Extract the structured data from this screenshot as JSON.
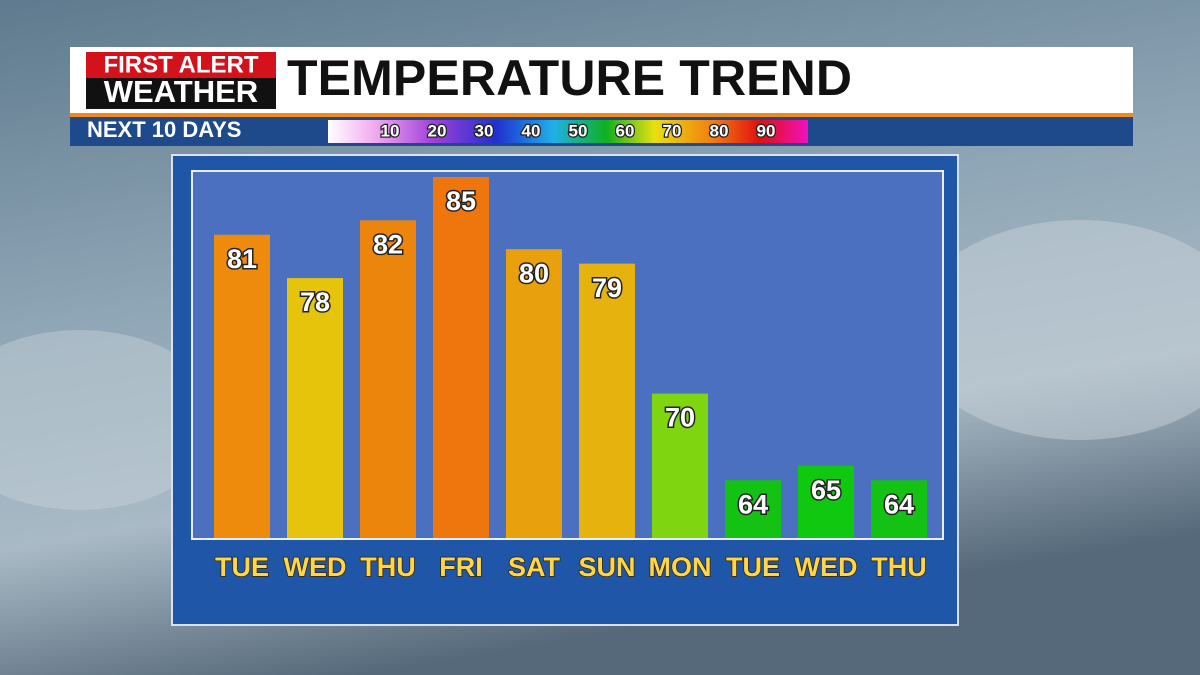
{
  "brand": {
    "line1": "FIRST ALERT",
    "line2": "WEATHER"
  },
  "chart_data": {
    "type": "bar",
    "title": "TEMPERATURE TREND",
    "subtitle": "NEXT 10 DAYS",
    "categories": [
      "TUE",
      "WED",
      "THU",
      "FRI",
      "SAT",
      "SUN",
      "MON",
      "TUE",
      "WED",
      "THU"
    ],
    "values": [
      81,
      78,
      82,
      85,
      80,
      79,
      70,
      64,
      65,
      64
    ],
    "colors": [
      "#ee8a0c",
      "#e6c40c",
      "#ec850c",
      "#ee760c",
      "#e8a00c",
      "#e6b20e",
      "#7fd610",
      "#14c214",
      "#10c810",
      "#14c214"
    ],
    "ylim": [
      60,
      85
    ],
    "color_scale": [
      10,
      20,
      30,
      40,
      50,
      60,
      70,
      80,
      90
    ]
  }
}
